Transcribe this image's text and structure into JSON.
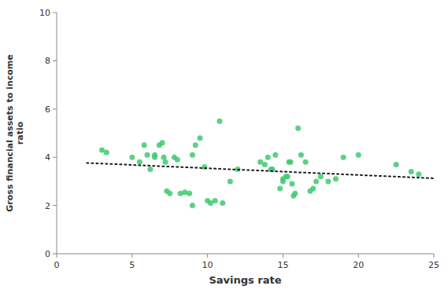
{
  "chart_data": {
    "type": "scatter",
    "xlabel": "Savings rate",
    "ylabel": "Gross financial assets to income\nratio",
    "xlim": [
      0,
      25
    ],
    "ylim": [
      0,
      10
    ],
    "xticks": [
      0,
      5,
      10,
      15,
      20,
      25
    ],
    "yticks": [
      0,
      2,
      4,
      6,
      8,
      10
    ],
    "grid": false,
    "series": [
      {
        "type": "scatter",
        "color": "#3EC96E",
        "marker": "circle",
        "x": [
          3.0,
          3.3,
          5.0,
          5.5,
          5.8,
          6.0,
          6.2,
          6.5,
          6.5,
          6.8,
          7.0,
          7.1,
          7.2,
          7.3,
          7.5,
          7.8,
          8.0,
          8.2,
          8.5,
          8.8,
          9.0,
          9.0,
          9.2,
          9.5,
          9.8,
          10.0,
          10.2,
          10.5,
          10.8,
          11.0,
          11.5,
          12.0,
          13.5,
          13.8,
          14.0,
          14.2,
          14.3,
          14.5,
          14.8,
          15.0,
          15.0,
          15.2,
          15.3,
          15.4,
          15.5,
          15.6,
          15.7,
          15.8,
          16.0,
          16.2,
          16.5,
          16.8,
          17.0,
          17.2,
          17.5,
          18.0,
          18.5,
          19.0,
          20.0,
          22.5,
          23.5,
          24.0
        ],
        "values": [
          4.3,
          4.2,
          4.0,
          3.8,
          4.5,
          4.1,
          3.5,
          4.1,
          4.0,
          4.5,
          4.6,
          4.0,
          3.8,
          2.6,
          2.5,
          4.0,
          3.9,
          2.5,
          2.55,
          2.5,
          2.0,
          4.1,
          4.5,
          4.8,
          3.6,
          2.2,
          2.1,
          2.2,
          5.5,
          2.1,
          3.0,
          3.5,
          3.8,
          3.7,
          4.0,
          3.5,
          3.5,
          4.1,
          2.7,
          3.0,
          3.1,
          3.2,
          3.2,
          3.8,
          3.8,
          2.9,
          2.4,
          2.5,
          5.2,
          4.1,
          3.8,
          2.6,
          2.7,
          3.0,
          3.2,
          3.0,
          3.1,
          4.0,
          4.1,
          3.7,
          3.4,
          3.3
        ]
      },
      {
        "type": "line",
        "color": "#1a1a1a",
        "line_style": "dotted",
        "x": [
          2.0,
          25.0
        ],
        "values": [
          3.7658,
          3.1267
        ]
      }
    ]
  }
}
